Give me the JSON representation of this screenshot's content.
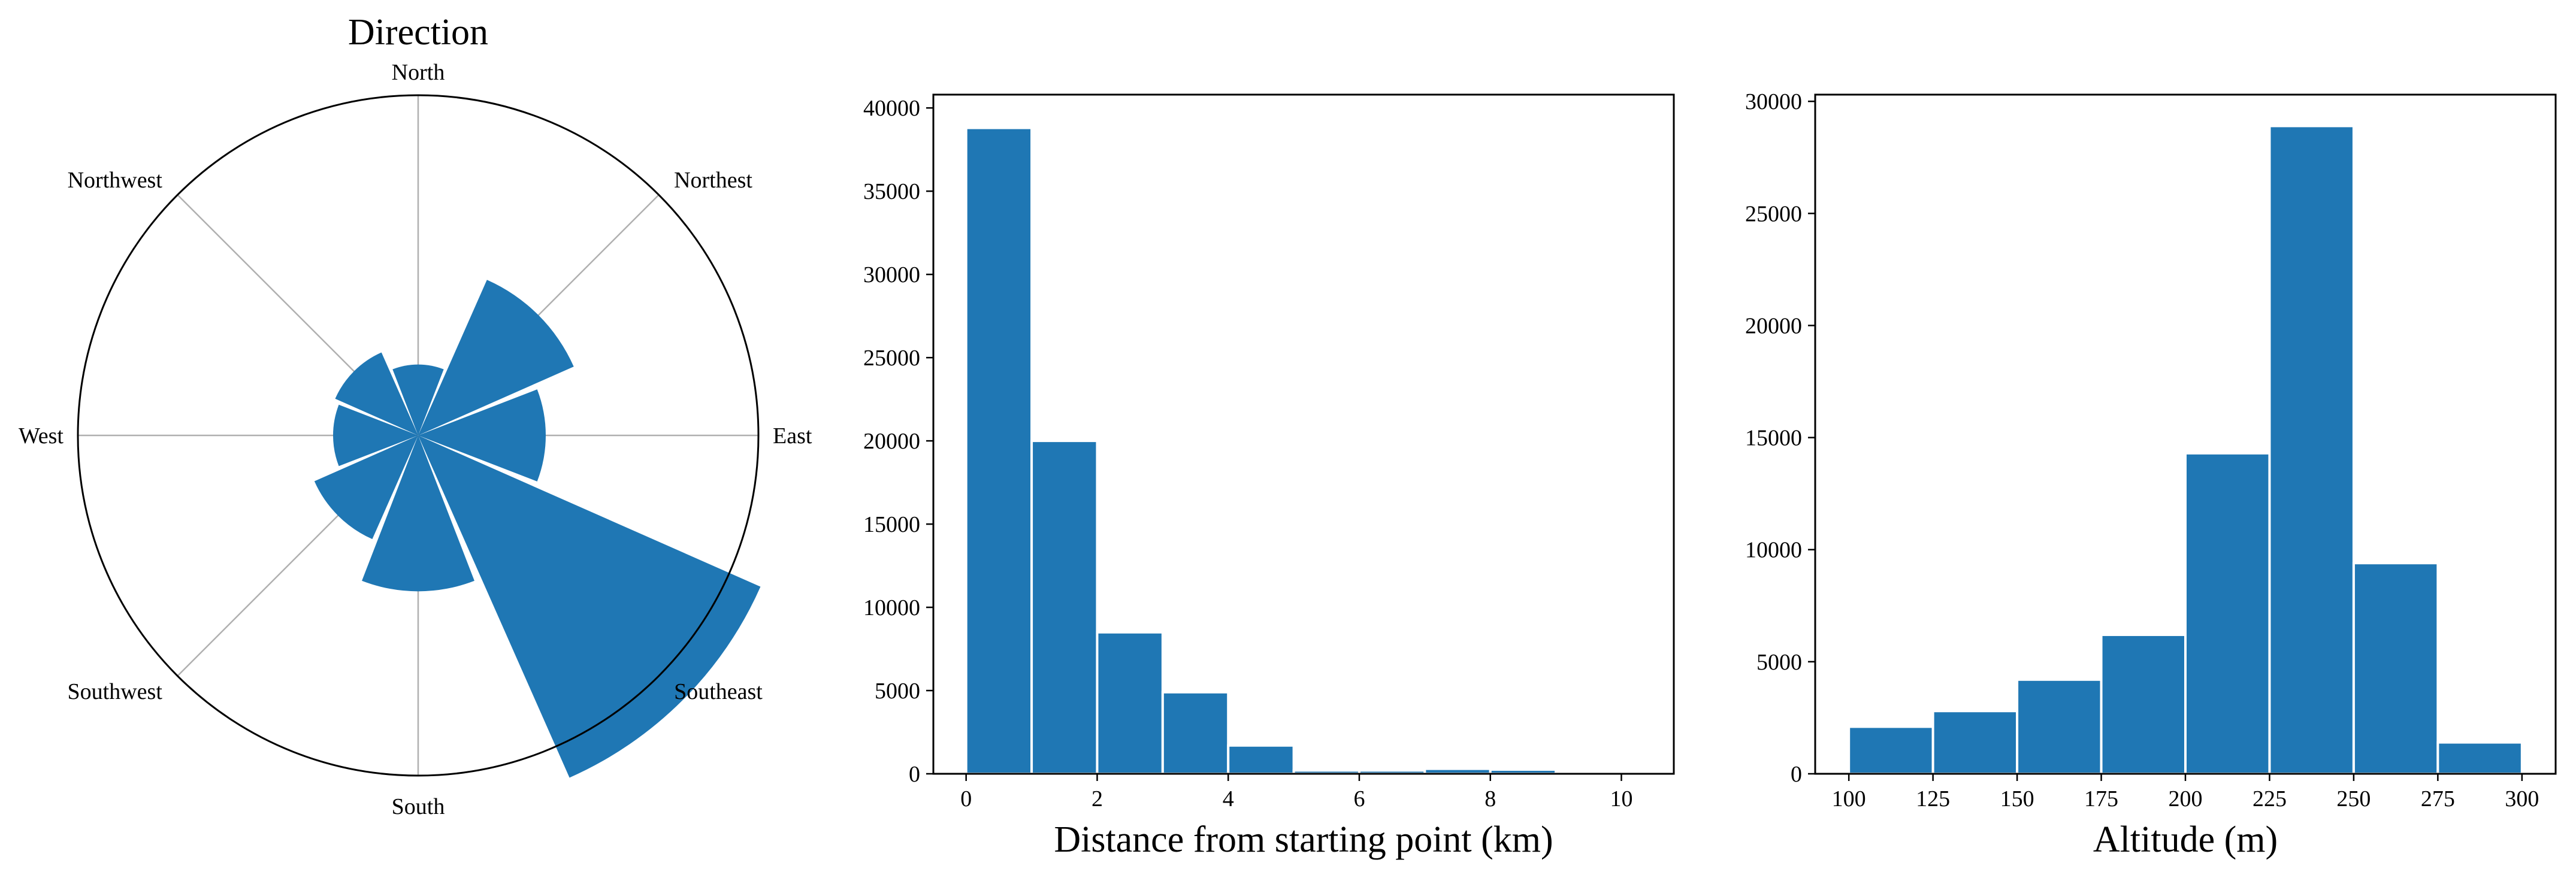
{
  "colors": {
    "bar": "#1f77b4",
    "axis": "#000000",
    "grid": "#b0b0b0"
  },
  "chart_data": [
    {
      "type": "bar",
      "subtype": "polar",
      "title": "Direction",
      "categories": [
        "North",
        "Northest",
        "East",
        "Southeast",
        "South",
        "Southwest",
        "West",
        "Northwest"
      ],
      "values": [
        2.5,
        6.0,
        4.5,
        13.2,
        5.5,
        4.0,
        3.0,
        3.2
      ],
      "rmax": 12.0,
      "grid": true
    },
    {
      "type": "bar",
      "subtype": "histogram",
      "xlabel": "Distance from starting point (km)",
      "bin_edges": [
        0,
        1,
        2,
        3,
        4,
        5,
        6,
        7,
        8,
        9,
        10.3
      ],
      "values": [
        38800,
        20000,
        8500,
        4900,
        1700,
        200,
        200,
        300,
        250,
        50
      ],
      "xlim": [
        -0.5,
        10.8
      ],
      "ylim": [
        0,
        40800
      ],
      "xticks": [
        "0",
        "2",
        "4",
        "6",
        "8",
        "10"
      ],
      "xtick_values": [
        0,
        2,
        4,
        6,
        8,
        10
      ],
      "yticks": [
        "0",
        "5000",
        "10000",
        "15000",
        "20000",
        "25000",
        "30000",
        "35000",
        "40000"
      ],
      "ytick_values": [
        0,
        5000,
        10000,
        15000,
        20000,
        25000,
        30000,
        35000,
        40000
      ]
    },
    {
      "type": "bar",
      "subtype": "histogram",
      "xlabel": "Altitude (m)",
      "bin_edges": [
        100,
        125,
        150,
        175,
        200,
        225,
        250,
        275,
        300
      ],
      "values": [
        2100,
        2800,
        4200,
        6200,
        14300,
        28900,
        9400,
        1400
      ],
      "xlim": [
        90,
        310
      ],
      "ylim": [
        0,
        30300
      ],
      "xticks": [
        "100",
        "125",
        "150",
        "175",
        "200",
        "225",
        "250",
        "275",
        "300"
      ],
      "xtick_values": [
        100,
        125,
        150,
        175,
        200,
        225,
        250,
        275,
        300
      ],
      "yticks": [
        "0",
        "5000",
        "10000",
        "15000",
        "20000",
        "25000",
        "30000"
      ],
      "ytick_values": [
        0,
        5000,
        10000,
        15000,
        20000,
        25000,
        30000
      ]
    }
  ]
}
